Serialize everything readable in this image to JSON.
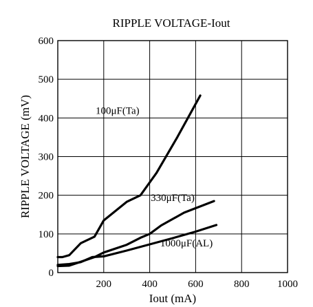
{
  "chart_data": {
    "type": "line",
    "title": "RIPPLE VOLTAGE-Iout",
    "xlabel": "Iout (mA)",
    "ylabel": "RIPPLE VOLTAGE (mV)",
    "xlim": [
      0,
      1000
    ],
    "ylim": [
      0,
      600
    ],
    "xticks": [
      200,
      400,
      600,
      800,
      1000
    ],
    "yticks": [
      0,
      100,
      200,
      300,
      400,
      500,
      600
    ],
    "grid": true,
    "legend": "inline",
    "series": [
      {
        "name": "100μF(Ta)",
        "x": [
          0,
          20,
          50,
          100,
          160,
          200,
          300,
          360,
          430,
          520,
          620
        ],
        "y": [
          40,
          40,
          45,
          76,
          93,
          135,
          183,
          200,
          258,
          350,
          458
        ]
      },
      {
        "name": "330μF(Ta)",
        "x": [
          0,
          50,
          100,
          160,
          200,
          300,
          360,
          400,
          450,
          550,
          680
        ],
        "y": [
          17,
          18,
          28,
          40,
          52,
          72,
          90,
          100,
          122,
          155,
          185
        ]
      },
      {
        "name": "1000μF(AL)",
        "x": [
          0,
          50,
          100,
          150,
          200,
          300,
          400,
          500,
          600,
          690
        ],
        "y": [
          20,
          22,
          27,
          40,
          42,
          57,
          73,
          89,
          106,
          123
        ]
      }
    ],
    "label_anchor_points": [
      {
        "x": 260,
        "y": 410
      },
      {
        "x": 500,
        "y": 185
      },
      {
        "x": 560,
        "y": 68
      }
    ]
  }
}
